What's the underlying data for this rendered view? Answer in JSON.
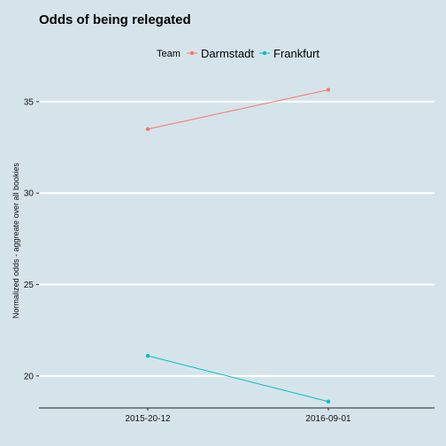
{
  "chart_data": {
    "type": "line",
    "title": "Odds of being relegated",
    "xlabel": "",
    "ylabel": "Normalized odds - aggreate over all bookies",
    "categories": [
      "2015-20-12",
      "2016-09-01"
    ],
    "y_ticks": [
      20,
      25,
      30,
      35
    ],
    "ylim": [
      18.25,
      36.4
    ],
    "grid": "horizontal",
    "legend": {
      "title": "Team",
      "placement": "top"
    },
    "series": [
      {
        "name": "Darmstadt",
        "color": "#f8766d",
        "values": [
          33.5,
          35.65
        ]
      },
      {
        "name": "Frankfurt",
        "color": "#00bfc4",
        "values": [
          21.1,
          18.6
        ]
      }
    ]
  }
}
